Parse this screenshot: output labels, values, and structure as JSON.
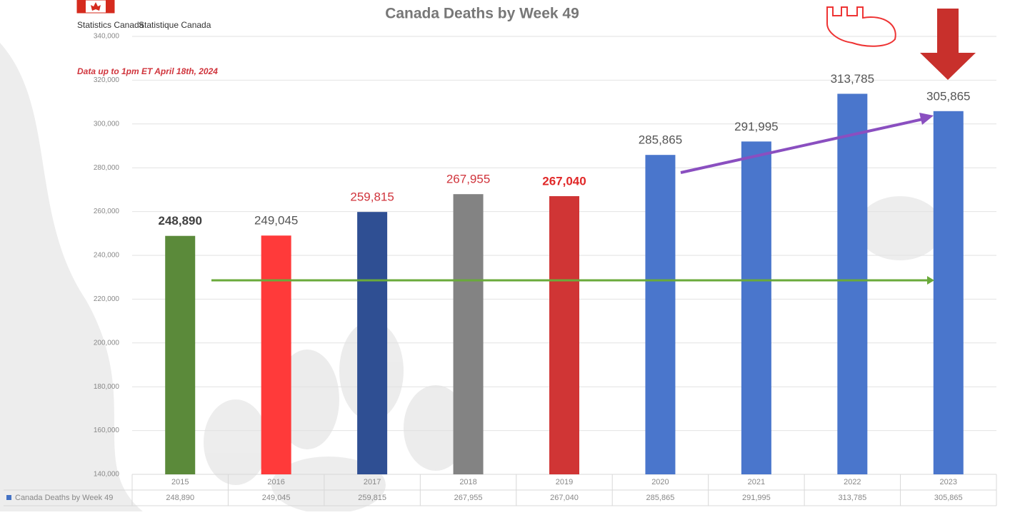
{
  "header": {
    "agency_en": "Statistics Canada",
    "agency_fr": "Statistique Canada"
  },
  "chart_data": {
    "type": "bar",
    "title": "Canada Deaths by Week 49",
    "subtitle": "Data up to 1pm ET April 18th, 2024",
    "categories": [
      "2015",
      "2016",
      "2017",
      "2018",
      "2019",
      "2020",
      "2021",
      "2022",
      "2023"
    ],
    "series": [
      {
        "name": "Canada Deaths by Week 49",
        "color": "#4472c4",
        "colors": [
          "#5b8a3a",
          "#ff3a3a",
          "#2f4f93",
          "#838383",
          "#d03535",
          "#4a76cc",
          "#4a76cc",
          "#4a76cc",
          "#4a76cc"
        ],
        "values": [
          248890,
          249045,
          259815,
          267955,
          267040,
          285865,
          291995,
          313785,
          305865
        ],
        "value_labels": [
          "248,890",
          "249,045",
          "259,815",
          "267,955",
          "267,040",
          "285,865",
          "291,995",
          "313,785",
          "305,865"
        ],
        "label_colors": [
          "#404040",
          "#555555",
          "#d0343c",
          "#d0343c",
          "#e02828",
          "#555555",
          "#555555",
          "#555555",
          "#555555"
        ]
      }
    ],
    "ylim": [
      140000,
      340000
    ],
    "yticks": [
      {
        "value": 140000,
        "label": "140,000"
      },
      {
        "value": 160000,
        "label": "160,000"
      },
      {
        "value": 180000,
        "label": "180,000"
      },
      {
        "value": 200000,
        "label": "200,000"
      },
      {
        "value": 220000,
        "label": "220,000"
      },
      {
        "value": 240000,
        "label": "240,000"
      },
      {
        "value": 260000,
        "label": "260,000"
      },
      {
        "value": 280000,
        "label": "280,000"
      },
      {
        "value": 300000,
        "label": "300,000"
      },
      {
        "value": 320000,
        "label": "320,000"
      },
      {
        "value": 340000,
        "label": "340,000"
      }
    ],
    "grid": true
  }
}
